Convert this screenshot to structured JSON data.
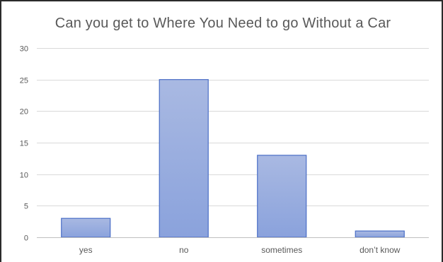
{
  "chart_data": {
    "type": "bar",
    "title": "Can you get to Where You Need to go Without a Car",
    "xlabel": "",
    "ylabel": "",
    "categories": [
      "yes",
      "no",
      "sometimes",
      "don’t know"
    ],
    "values": [
      3,
      25,
      13,
      1
    ],
    "ylim": [
      0,
      30
    ],
    "yticks": [
      0,
      5,
      10,
      15,
      20,
      25,
      30
    ],
    "grid": true,
    "legend": "none",
    "colors": {
      "bar_fill_top": "#a9b9e2",
      "bar_fill_bottom": "#8aa2dc",
      "bar_stroke": "#4a6ec7",
      "gridline": "#d9d9d9",
      "axis_line": "#bfbfbf",
      "text": "#595959"
    }
  }
}
